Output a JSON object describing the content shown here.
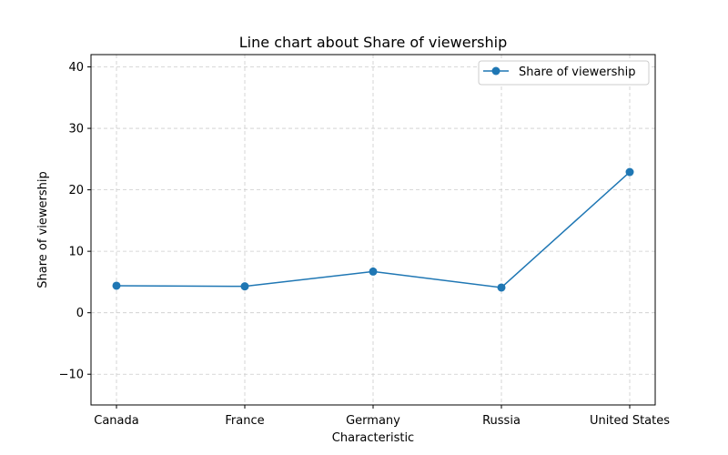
{
  "chart_data": {
    "type": "line",
    "title": "Line chart about Share of viewership",
    "xlabel": "Characteristic",
    "ylabel": "Share of viewership",
    "categories": [
      "Canada",
      "France",
      "Germany",
      "Russia",
      "United States"
    ],
    "series": [
      {
        "name": "Share of viewership",
        "values": [
          4.4,
          4.3,
          6.7,
          4.1,
          22.9
        ],
        "color": "#1f77b4"
      }
    ],
    "ylim": [
      -15,
      42
    ],
    "yticks": [
      -10,
      0,
      10,
      20,
      30,
      40
    ],
    "ytick_labels": [
      "−10",
      "0",
      "10",
      "20",
      "30",
      "40"
    ],
    "grid": true,
    "legend_position": "top-right"
  }
}
